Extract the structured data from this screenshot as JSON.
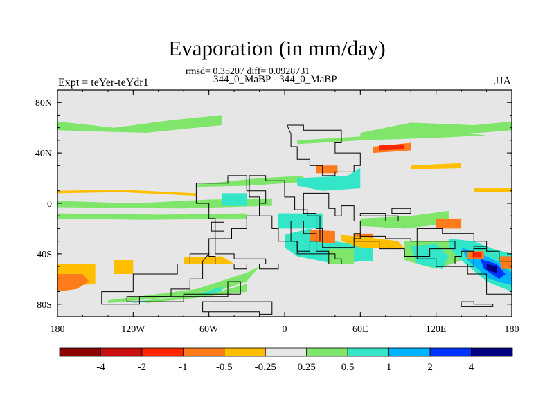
{
  "title": "Evaporation (in mm/day)",
  "stats": "rmsd= 0.35207 diff= 0.0928731",
  "subtitle": "344_0_MaBP - 344_0_MaBP",
  "left_label": "Expt = teYer-teYdr1",
  "right_label": "JJA",
  "chart_data": {
    "type": "map-contour",
    "title": "Evaporation (in mm/day)",
    "subtitle": "344_0_MaBP - 344_0_MaBP",
    "annotation": "rmsd= 0.35207 diff= 0.0928731",
    "experiment": "Expt = teYer-teYdr1",
    "season": "JJA",
    "xlim": [
      -180,
      180
    ],
    "ylim": [
      -90,
      90
    ],
    "x_ticks": [
      {
        "value": -180,
        "label": "180"
      },
      {
        "value": -120,
        "label": "120W"
      },
      {
        "value": -60,
        "label": "60W"
      },
      {
        "value": 0,
        "label": "0"
      },
      {
        "value": 60,
        "label": "60E"
      },
      {
        "value": 120,
        "label": "120E"
      },
      {
        "value": 180,
        "label": "180"
      }
    ],
    "y_ticks": [
      {
        "value": 80,
        "label": "80N"
      },
      {
        "value": 40,
        "label": "40N"
      },
      {
        "value": 0,
        "label": "0"
      },
      {
        "value": -40,
        "label": "40S"
      },
      {
        "value": -80,
        "label": "80S"
      }
    ],
    "colorbar": {
      "colors": [
        "#8b0000",
        "#c80f0f",
        "#ff2600",
        "#ff7b1c",
        "#ffbf00",
        "#e6e6e6",
        "#80e66b",
        "#33e6c8",
        "#00b3ff",
        "#0033ff",
        "#000080"
      ],
      "labels": [
        "-4",
        "-2",
        "-1",
        "-0.5",
        "-0.25",
        "0.25",
        "0.5",
        "1",
        "2",
        "4"
      ]
    },
    "features": [
      {
        "level": "0.25",
        "lon": [
          -180,
          -135,
          -90,
          -50,
          -50,
          -110,
          -180
        ],
        "lat": [
          65,
          60,
          66,
          70,
          62,
          56,
          58
        ]
      },
      {
        "level": "0.25",
        "lon": [
          60,
          100,
          150,
          180,
          180,
          130,
          60
        ],
        "lat": [
          56,
          64,
          62,
          65,
          58,
          54,
          52
        ]
      },
      {
        "level": "0.25",
        "lon": [
          10,
          60,
          110,
          140,
          160,
          120,
          60,
          10
        ],
        "lat": [
          50,
          53,
          55,
          56,
          54,
          52,
          50,
          47
        ]
      },
      {
        "level": "0.25",
        "lon": [
          -180,
          -120,
          -60,
          -10,
          -10,
          -80,
          -180
        ],
        "lat": [
          2,
          0,
          3,
          4,
          -2,
          -4,
          -3
        ]
      },
      {
        "level": "-0.25",
        "lon": [
          -180,
          -130,
          -70,
          -70,
          -130,
          -180
        ],
        "lat": [
          10,
          11,
          8,
          6,
          9,
          8
        ]
      },
      {
        "level": "0.25",
        "lon": [
          -180,
          -100,
          -30,
          -30,
          -110,
          -180
        ],
        "lat": [
          -8,
          -9,
          -8,
          -12,
          -13,
          -12
        ]
      },
      {
        "level": "0.25",
        "lon": [
          -70,
          -20,
          15,
          15,
          -30,
          -70
        ],
        "lat": [
          15,
          20,
          22,
          17,
          14,
          13
        ]
      },
      {
        "level": "-0.25",
        "lon": [
          100,
          140,
          140,
          100
        ],
        "lat": [
          30,
          32,
          28,
          27
        ]
      },
      {
        "level": "-0.25",
        "lon": [
          150,
          180,
          180,
          150
        ],
        "lat": [
          12,
          12,
          9,
          9
        ]
      },
      {
        "level": "0.25",
        "lon": [
          -140,
          -60,
          -30,
          -20,
          -30,
          -70,
          -140
        ],
        "lat": [
          -79,
          -72,
          -62,
          -50,
          -55,
          -68,
          -77
        ]
      },
      {
        "level": "0.5",
        "lon": [
          -120,
          -70,
          -50,
          -50,
          -80,
          -120
        ],
        "lat": [
          -78,
          -73,
          -66,
          -70,
          -75,
          -79
        ]
      },
      {
        "level": "0.25",
        "lon": [
          -110,
          -60,
          -30,
          -30,
          -70,
          -110
        ],
        "lat": [
          -77,
          -72,
          -64,
          -70,
          -75,
          -79
        ]
      },
      {
        "level": "-0.25",
        "lon": [
          -180,
          -150,
          -150,
          -180
        ],
        "lat": [
          -48,
          -48,
          -64,
          -66
        ]
      },
      {
        "level": "-0.5",
        "lon": [
          -180,
          -160,
          -155,
          -165,
          -180
        ],
        "lat": [
          -56,
          -56,
          -62,
          -68,
          -70
        ]
      },
      {
        "level": "-0.25",
        "lon": [
          -135,
          -120,
          -120,
          -135
        ],
        "lat": [
          -45,
          -45,
          -56,
          -56
        ]
      },
      {
        "level": "-0.25",
        "lon": [
          -80,
          -50,
          -40,
          -80
        ],
        "lat": [
          -43,
          -42,
          -48,
          -48
        ]
      },
      {
        "level": "0.5",
        "lon": [
          0,
          20,
          40,
          70,
          70,
          40,
          10,
          0
        ],
        "lat": [
          -25,
          -20,
          -30,
          -35,
          -45,
          -48,
          -42,
          -35
        ]
      },
      {
        "level": "0.25",
        "lon": [
          60,
          100,
          130,
          130,
          95,
          60
        ],
        "lat": [
          -12,
          -10,
          -6,
          -16,
          -20,
          -18
        ]
      },
      {
        "level": "0.25",
        "lon": [
          95,
          130,
          150,
          120,
          95
        ],
        "lat": [
          -30,
          -30,
          -42,
          -52,
          -45
        ]
      },
      {
        "level": "0.5",
        "lon": [
          100,
          120,
          130,
          125,
          105
        ],
        "lat": [
          -34,
          -32,
          -42,
          -52,
          -48
        ]
      },
      {
        "level": "-0.5",
        "lon": [
          20,
          40,
          40,
          20
        ],
        "lat": [
          -21,
          -22,
          -32,
          -30
        ]
      },
      {
        "level": "-0.5",
        "lon": [
          55,
          70,
          70,
          55
        ],
        "lat": [
          -24,
          -24,
          -34,
          -34
        ]
      },
      {
        "level": "-0.5",
        "lon": [
          120,
          140,
          140,
          120
        ],
        "lat": [
          -12,
          -12,
          -20,
          -20
        ]
      },
      {
        "level": "-0.25",
        "lon": [
          45,
          75,
          90,
          95,
          60,
          45
        ],
        "lat": [
          -25,
          -28,
          -30,
          -36,
          -35,
          -30
        ]
      },
      {
        "level": "0.5",
        "lon": [
          130,
          150,
          165,
          180,
          180,
          160,
          140,
          130
        ],
        "lat": [
          -28,
          -30,
          -36,
          -40,
          -70,
          -62,
          -45,
          -35
        ]
      },
      {
        "level": "1",
        "lon": [
          140,
          160,
          172,
          180,
          180,
          162,
          145
        ],
        "lat": [
          -35,
          -42,
          -48,
          -55,
          -65,
          -60,
          -45
        ]
      },
      {
        "level": "2",
        "lon": [
          155,
          168,
          175,
          170,
          158
        ],
        "lat": [
          -44,
          -48,
          -56,
          -60,
          -52
        ]
      },
      {
        "level": "4",
        "lon": [
          160,
          168,
          168,
          160
        ],
        "lat": [
          -48,
          -50,
          -55,
          -53
        ]
      },
      {
        "level": "-0.5",
        "lon": [
          145,
          158,
          158,
          145
        ],
        "lat": [
          -38,
          -38,
          -44,
          -44
        ]
      },
      {
        "level": "-1",
        "lon": [
          149,
          156,
          156,
          149
        ],
        "lat": [
          -39,
          -39,
          -43,
          -43
        ]
      },
      {
        "level": "-0.5",
        "lon": [
          170,
          180,
          180,
          172
        ],
        "lat": [
          -42,
          -42,
          -52,
          -52
        ]
      },
      {
        "level": "-0.5",
        "lon": [
          70,
          100,
          100,
          70
        ],
        "lat": [
          45,
          48,
          42,
          40
        ]
      },
      {
        "level": "-1",
        "lon": [
          75,
          95,
          95,
          75
        ],
        "lat": [
          46,
          47,
          43,
          42
        ]
      },
      {
        "level": "-0.5",
        "lon": [
          25,
          42,
          42,
          25
        ],
        "lat": [
          30,
          30,
          24,
          24
        ]
      },
      {
        "level": "0.5",
        "lon": [
          10,
          50,
          60,
          60,
          30,
          10
        ],
        "lat": [
          20,
          22,
          28,
          12,
          10,
          14
        ]
      },
      {
        "level": "0.5",
        "lon": [
          -5,
          30,
          30,
          -5
        ],
        "lat": [
          -8,
          -8,
          -20,
          -20
        ]
      },
      {
        "level": "0.5",
        "lon": [
          -50,
          -30,
          -30,
          -50
        ],
        "lat": [
          8,
          8,
          -2,
          -2
        ]
      },
      {
        "level": "0.25",
        "lon": [
          35,
          55,
          55,
          35
        ],
        "lat": [
          -36,
          -36,
          -48,
          -48
        ]
      },
      {
        "level": "0.5",
        "lon": [
          60,
          70,
          70,
          60
        ],
        "lat": [
          -36,
          -36,
          -46,
          -46
        ]
      }
    ],
    "land": [
      {
        "lon": [
          2,
          15,
          15,
          45,
          45,
          40,
          40,
          60,
          60,
          55,
          55,
          40,
          40,
          30,
          30,
          20,
          20,
          10,
          10,
          5,
          5,
          2
        ],
        "lat": [
          62,
          62,
          58,
          58,
          48,
          48,
          40,
          40,
          30,
          30,
          25,
          25,
          22,
          22,
          30,
          30,
          35,
          35,
          45,
          45,
          55,
          62
        ]
      },
      {
        "lon": [
          -28,
          -15,
          -15,
          0,
          0,
          8,
          8,
          18,
          18,
          28,
          28,
          20,
          20,
          10,
          10,
          -5,
          -5,
          -10,
          -10,
          -20,
          -20,
          -28,
          -28
        ],
        "lat": [
          22,
          22,
          18,
          18,
          5,
          5,
          -5,
          -5,
          -10,
          -10,
          -30,
          -30,
          -38,
          -38,
          -30,
          -30,
          -20,
          -20,
          -10,
          -10,
          5,
          5,
          22
        ]
      },
      {
        "lon": [
          15,
          35,
          35,
          40,
          40,
          45,
          45,
          55,
          55,
          60,
          60,
          55,
          55,
          30,
          30,
          25,
          25,
          15,
          15
        ],
        "lat": [
          8,
          8,
          -4,
          -4,
          -10,
          -10,
          -2,
          -2,
          -14,
          -14,
          -28,
          -28,
          -35,
          -35,
          -20,
          -20,
          -8,
          -8,
          8
        ]
      },
      {
        "lon": [
          5,
          15,
          15,
          25,
          25,
          35,
          35,
          45,
          45,
          40,
          40,
          10,
          10,
          5,
          5
        ],
        "lat": [
          -14,
          -14,
          -24,
          -24,
          -38,
          -38,
          -48,
          -48,
          -44,
          -44,
          -40,
          -40,
          -30,
          -30,
          -14
        ]
      },
      {
        "lon": [
          55,
          75,
          75,
          95,
          95,
          115,
          115,
          135,
          135,
          100,
          100,
          80,
          80,
          60,
          60,
          55,
          55
        ],
        "lat": [
          -30,
          -30,
          -36,
          -36,
          -42,
          -42,
          -36,
          -36,
          -30,
          -30,
          -28,
          -28,
          -26,
          -26,
          -24,
          -24,
          -30
        ]
      },
      {
        "lon": [
          60,
          80,
          80,
          90,
          90,
          60,
          60
        ],
        "lat": [
          -8,
          -8,
          -14,
          -14,
          -10,
          -10,
          -8
        ]
      },
      {
        "lon": [
          105,
          125,
          125,
          150,
          150,
          160,
          160,
          150,
          150,
          120,
          120,
          105,
          105
        ],
        "lat": [
          -20,
          -20,
          -24,
          -24,
          -30,
          -30,
          -36,
          -36,
          -50,
          -50,
          -44,
          -44,
          -20
        ]
      },
      {
        "lon": [
          135,
          140,
          140,
          150,
          150,
          160,
          160,
          170,
          170,
          180,
          180,
          160,
          160,
          145,
          145,
          135
        ],
        "lat": [
          -42,
          -42,
          -38,
          -38,
          -34,
          -34,
          -38,
          -38,
          -46,
          -46,
          -72,
          -72,
          -56,
          -56,
          -48,
          -48
        ]
      },
      {
        "lon": [
          85,
          100,
          100,
          85,
          85
        ],
        "lat": [
          -4,
          -4,
          -8,
          -8,
          -4
        ]
      },
      {
        "lon": [
          -70,
          -45,
          -45,
          -30,
          -30,
          -15,
          -15,
          -20,
          -20,
          -30,
          -30,
          -42,
          -42,
          -55,
          -55,
          -60,
          -60,
          -70
        ],
        "lat": [
          16,
          16,
          22,
          22,
          10,
          10,
          0,
          0,
          -10,
          -10,
          -20,
          -20,
          -28,
          -28,
          -12,
          -12,
          0,
          0
        ]
      },
      {
        "lon": [
          -58,
          -48,
          -48,
          -58,
          -58
        ],
        "lat": [
          -15,
          -15,
          -22,
          -22,
          -15
        ]
      },
      {
        "lon": [
          -60,
          -55,
          -55,
          -40,
          -40,
          -15,
          -15,
          -5,
          -5,
          -20,
          -20,
          -30,
          -30,
          -40,
          -40,
          -55,
          -55,
          -60,
          -60
        ],
        "lat": [
          -28,
          -28,
          -40,
          -40,
          -44,
          -44,
          -48,
          -48,
          -52,
          -52,
          -48,
          -48,
          -52,
          -52,
          -48,
          -48,
          -42,
          -42,
          -28
        ]
      },
      {
        "lon": [
          -60,
          -75,
          -75,
          -85,
          -85,
          -120,
          -120,
          -145,
          -145,
          -115,
          -115,
          -90,
          -90,
          -75,
          -75,
          -65,
          -65,
          -60
        ],
        "lat": [
          -40,
          -40,
          -48,
          -48,
          -56,
          -56,
          -70,
          -70,
          -80,
          -80,
          -74,
          -74,
          -68,
          -68,
          -60,
          -60,
          -46,
          -40
        ]
      },
      {
        "lon": [
          -125,
          -45,
          -45,
          -35,
          -35,
          -80,
          -80,
          -125,
          -125
        ],
        "lat": [
          -74,
          -74,
          -62,
          -62,
          -72,
          -72,
          -78,
          -78,
          -74
        ]
      },
      {
        "lon": [
          -65,
          -10,
          -10,
          -20,
          -20,
          -65,
          -65
        ],
        "lat": [
          -78,
          -78,
          -88,
          -88,
          -86,
          -86,
          -78
        ]
      },
      {
        "lon": [
          140,
          150,
          150,
          165,
          165,
          140,
          140
        ],
        "lat": [
          -78,
          -78,
          -80,
          -80,
          -82,
          -82,
          -78
        ]
      }
    ]
  }
}
